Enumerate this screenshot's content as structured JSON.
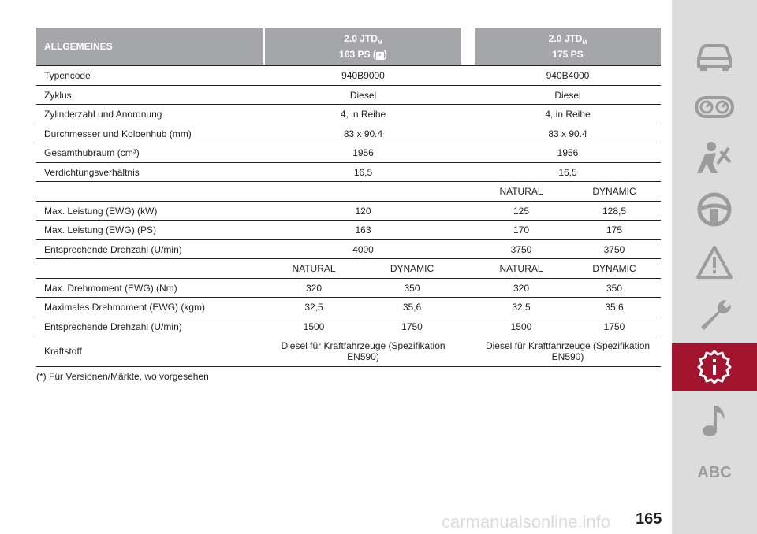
{
  "table": {
    "header": {
      "title": "ALLGEMEINES",
      "col1_line1": "2.0 JTD",
      "col1_sub": "M",
      "col1_line2": "163 PS (",
      "col1_star": "*",
      "col1_close": ")",
      "col2_line1": "2.0 JTD",
      "col2_sub": "M",
      "col2_line2": "175 PS"
    },
    "rows": [
      {
        "label": "Typencode",
        "v1": "940B9000",
        "v2": "940B4000"
      },
      {
        "label": "Zyklus",
        "v1": "Diesel",
        "v2": "Diesel"
      },
      {
        "label": "Zylinderzahl und Anordnung",
        "v1": "4, in Reihe",
        "v2": "4, in Reihe"
      },
      {
        "label": "Durchmesser und Kolbenhub (mm)",
        "v1": "83 x 90.4",
        "v2": "83 x 90.4"
      },
      {
        "label": "Gesamthubraum (cm³)",
        "v1": "1956",
        "v2": "1956"
      },
      {
        "label": "Verdichtungsverhältnis",
        "v1": "16,5",
        "v2": "16,5"
      }
    ],
    "power_modes": {
      "a": "NATURAL",
      "b": "DYNAMIC"
    },
    "power_rows": [
      {
        "label": "Max. Leistung (EWG) (kW)",
        "v1": "120",
        "v2a": "125",
        "v2b": "128,5"
      },
      {
        "label": "Max. Leistung (EWG) (PS)",
        "v1": "163",
        "v2a": "170",
        "v2b": "175"
      },
      {
        "label": "Entsprechende Drehzahl (U/min)",
        "v1": "4000",
        "v2a": "3750",
        "v2b": "3750"
      }
    ],
    "torque_modes": {
      "a": "NATURAL",
      "b": "DYNAMIC",
      "c": "NATURAL",
      "d": "DYNAMIC"
    },
    "torque_rows": [
      {
        "label": "Max. Drehmoment (EWG) (Nm)",
        "a": "320",
        "b": "350",
        "c": "320",
        "d": "350"
      },
      {
        "label": "Maximales Drehmoment (EWG) (kgm)",
        "a": "32,5",
        "b": "35,6",
        "c": "32,5",
        "d": "35,6"
      },
      {
        "label": "Entsprechende Drehzahl (U/min)",
        "a": "1500",
        "b": "1750",
        "c": "1500",
        "d": "1750"
      }
    ],
    "fuel": {
      "label": "Kraftstoff",
      "v1_line1": "Diesel für Kraftfahrzeuge (Spezifikation",
      "v1_line2": "EN590)",
      "v2_line1": "Diesel für Kraftfahrzeuge (Spezifikation",
      "v2_line2": "EN590)"
    },
    "footnote": "(*) Für Versionen/Märkte, wo vorgesehen"
  },
  "sidebar": {
    "items": [
      {
        "icon": "car-icon"
      },
      {
        "icon": "dashboard-gauges-icon"
      },
      {
        "icon": "seatbelt-person-icon"
      },
      {
        "icon": "steering-wheel-icon"
      },
      {
        "icon": "warning-triangle-icon"
      },
      {
        "icon": "wrench-icon"
      },
      {
        "icon": "technical-data-gear-icon",
        "active": true
      },
      {
        "icon": "music-note-icon"
      },
      {
        "label": "ABC"
      }
    ],
    "active_color": "#a3152f",
    "background": "#dcdcdc",
    "icon_color": "#9c9c9c"
  },
  "page_number": "165",
  "watermark": "carmanualsonline.info"
}
